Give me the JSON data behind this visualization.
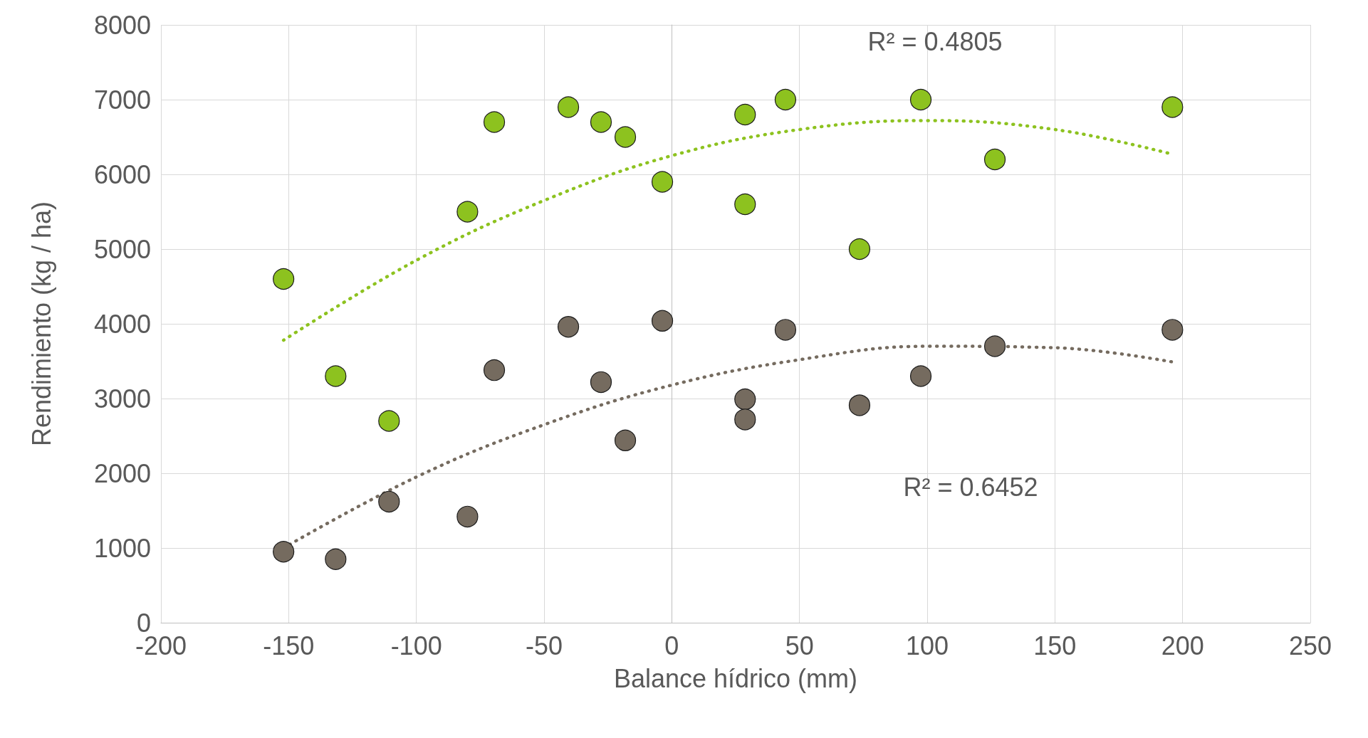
{
  "chart_data": {
    "type": "scatter",
    "xlabel": "Balance hídrico (mm)",
    "ylabel": "Rendimiento (kg / ha)",
    "xlim": [
      -200,
      250
    ],
    "xticks": [
      -200,
      -150,
      -100,
      -50,
      0,
      50,
      100,
      150,
      200,
      250
    ],
    "ylim": [
      0,
      8000
    ],
    "yticks": [
      0,
      1000,
      2000,
      3000,
      4000,
      5000,
      6000,
      7000,
      8000
    ],
    "grid": true,
    "marker": "circle",
    "series": [
      {
        "color": "#8dc21f",
        "x": [
          -152,
          -131.6,
          -110.7,
          -80,
          -69.5,
          -40.5,
          -27.7,
          -18.2,
          -3.7,
          28.7,
          28.7,
          44.5,
          73.5,
          97.5,
          126.5,
          196
        ],
        "values": [
          4600,
          3300,
          2700,
          5500,
          6700,
          6900,
          6700,
          6500,
          5900,
          6800,
          5600,
          7000,
          5000,
          7000,
          6200,
          6900
        ]
      },
      {
        "color": "#756b5f",
        "x": [
          -152,
          -131.6,
          -110.7,
          -80,
          -69.5,
          -40.5,
          -27.7,
          -18.2,
          -3.7,
          28.7,
          28.7,
          44.5,
          73.5,
          97.5,
          126.5,
          196
        ],
        "values": [
          950,
          850,
          1620,
          1420,
          3380,
          3960,
          3220,
          2440,
          4040,
          2990,
          2720,
          3920,
          2910,
          3300,
          3700,
          3920
        ]
      },
      {
        "type": "line",
        "color": "#8dc21f",
        "marker": "none",
        "line_style": "dotted",
        "x": [
          -152,
          -100,
          -50,
          0,
          50,
          100,
          150,
          196
        ],
        "values": [
          3780,
          4850,
          5650,
          6250,
          6600,
          6720,
          6600,
          6270
        ]
      },
      {
        "type": "line",
        "color": "#756b5f",
        "marker": "none",
        "line_style": "dotted",
        "x": [
          -152,
          -100,
          -50,
          0,
          50,
          100,
          150,
          196
        ],
        "values": [
          1000,
          1950,
          2650,
          3180,
          3520,
          3700,
          3680,
          3490
        ]
      }
    ],
    "annotations": [
      "R² = 0.4805",
      "R² = 0.6452"
    ]
  }
}
